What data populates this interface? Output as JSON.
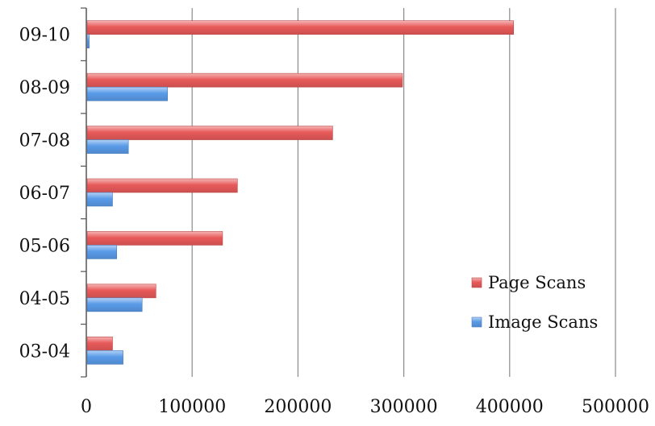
{
  "chart_data": {
    "type": "bar",
    "orientation": "horizontal",
    "categories": [
      "03-04",
      "04-05",
      "05-06",
      "06-07",
      "07-08",
      "08-09",
      "09-10"
    ],
    "series": [
      {
        "name": "Page Scans",
        "color": "#e85a5a",
        "values": [
          24000,
          65000,
          128000,
          142000,
          232000,
          298000,
          403000
        ]
      },
      {
        "name": "Image Scans",
        "color": "#5a9be8",
        "values": [
          34000,
          52000,
          28000,
          24000,
          39000,
          76000,
          2000
        ]
      }
    ],
    "xlim": [
      0,
      500000
    ],
    "xticks": [
      "0",
      "100000",
      "200000",
      "300000",
      "400000",
      "500000"
    ],
    "grid": "vertical",
    "legend_position": "right",
    "title": "",
    "xlabel": "",
    "ylabel": ""
  }
}
